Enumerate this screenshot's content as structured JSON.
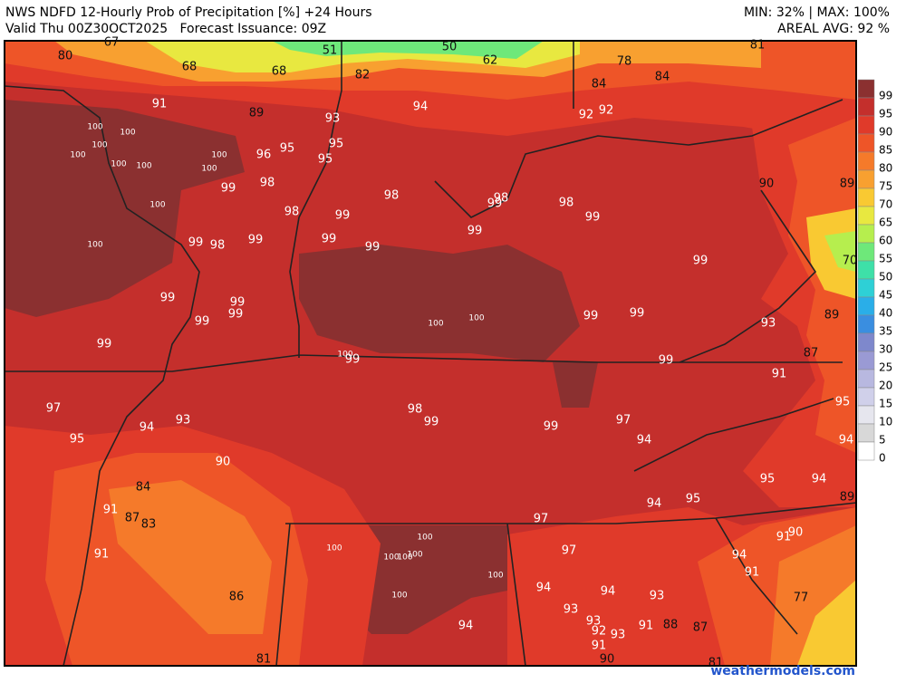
{
  "header": {
    "title": "NWS NDFD 12-Hourly Prob of Precipitation [%] +24 Hours",
    "valid": "Valid Thu 00Z30OCT2025   Forecast Issuance: 09Z",
    "minmax": "MIN: 32% | MAX: 100%",
    "areal_avg": "AREAL AVG: 92 %"
  },
  "map": {
    "labels": [
      80,
      67,
      68,
      68,
      51,
      50,
      62,
      82,
      78,
      81,
      84,
      84,
      91,
      89,
      93,
      94,
      92,
      92,
      100,
      100,
      100,
      100,
      100,
      100,
      100,
      100,
      96,
      95,
      95,
      95,
      99,
      98,
      98,
      98,
      99,
      98,
      99,
      90,
      89,
      100,
      98,
      99,
      99,
      99,
      99,
      99,
      98,
      99,
      100,
      99,
      70,
      99,
      99,
      99,
      99,
      100,
      100,
      99,
      99,
      93,
      89,
      99,
      100,
      99,
      99,
      87,
      91,
      97,
      98,
      99,
      99,
      97,
      95,
      94,
      93,
      95,
      94,
      94,
      90,
      95,
      94,
      84,
      94,
      95,
      89,
      91,
      87,
      83,
      97,
      90,
      91,
      100,
      91,
      100,
      100,
      100,
      100,
      97,
      94,
      91,
      100,
      94,
      94,
      93,
      86,
      100,
      77,
      93,
      93,
      92,
      93,
      91,
      88,
      87,
      94,
      91,
      90,
      81,
      81
    ]
  },
  "legend": {
    "entries": [
      {
        "value": 99,
        "color": "#8b3030"
      },
      {
        "value": 95,
        "color": "#c42f2c"
      },
      {
        "value": 90,
        "color": "#e03a2a"
      },
      {
        "value": 85,
        "color": "#ee5528"
      },
      {
        "value": 80,
        "color": "#f57a2a"
      },
      {
        "value": 75,
        "color": "#f8a030"
      },
      {
        "value": 70,
        "color": "#f9c932"
      },
      {
        "value": 65,
        "color": "#e8e840"
      },
      {
        "value": 60,
        "color": "#b6ee4e"
      },
      {
        "value": 55,
        "color": "#6ee87a"
      },
      {
        "value": 50,
        "color": "#3ee0a8"
      },
      {
        "value": 45,
        "color": "#2ed0d6"
      },
      {
        "value": 40,
        "color": "#2aaee8"
      },
      {
        "value": 35,
        "color": "#3a8ee0"
      },
      {
        "value": 30,
        "color": "#7e88cc"
      },
      {
        "value": 25,
        "color": "#9a9ad4"
      },
      {
        "value": 20,
        "color": "#b8b8e0"
      },
      {
        "value": 15,
        "color": "#d0d0ea"
      },
      {
        "value": 10,
        "color": "#e6e6ee"
      },
      {
        "value": 5,
        "color": "#d8d8d8"
      },
      {
        "value": 0,
        "color": "#ffffff"
      }
    ]
  },
  "footer": {
    "watermark": "weathermodels.com"
  }
}
